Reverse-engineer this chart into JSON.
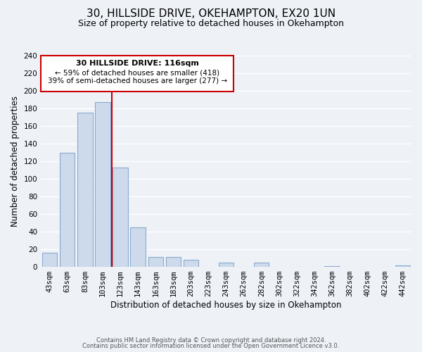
{
  "title": "30, HILLSIDE DRIVE, OKEHAMPTON, EX20 1UN",
  "subtitle": "Size of property relative to detached houses in Okehampton",
  "xlabel": "Distribution of detached houses by size in Okehampton",
  "ylabel": "Number of detached properties",
  "footer_line1": "Contains HM Land Registry data © Crown copyright and database right 2024.",
  "footer_line2": "Contains public sector information licensed under the Open Government Licence v3.0.",
  "bar_labels": [
    "43sqm",
    "63sqm",
    "83sqm",
    "103sqm",
    "123sqm",
    "143sqm",
    "163sqm",
    "183sqm",
    "203sqm",
    "223sqm",
    "243sqm",
    "262sqm",
    "282sqm",
    "302sqm",
    "322sqm",
    "342sqm",
    "362sqm",
    "382sqm",
    "402sqm",
    "422sqm",
    "442sqm"
  ],
  "bar_values": [
    16,
    130,
    175,
    187,
    113,
    45,
    11,
    11,
    8,
    0,
    5,
    0,
    5,
    0,
    0,
    0,
    1,
    0,
    0,
    0,
    2
  ],
  "bar_color": "#cddaeb",
  "bar_edge_color": "#8aaad0",
  "ylim": [
    0,
    240
  ],
  "yticks": [
    0,
    20,
    40,
    60,
    80,
    100,
    120,
    140,
    160,
    180,
    200,
    220,
    240
  ],
  "vline_color": "#cc0000",
  "annotation_title": "30 HILLSIDE DRIVE: 116sqm",
  "annotation_line2": "← 59% of detached houses are smaller (418)",
  "annotation_line3": "39% of semi-detached houses are larger (277) →",
  "background_color": "#eef2f7",
  "grid_color": "#ffffff",
  "title_fontsize": 11,
  "subtitle_fontsize": 9,
  "axis_label_fontsize": 8.5,
  "tick_fontsize": 7.5,
  "footer_fontsize": 6
}
